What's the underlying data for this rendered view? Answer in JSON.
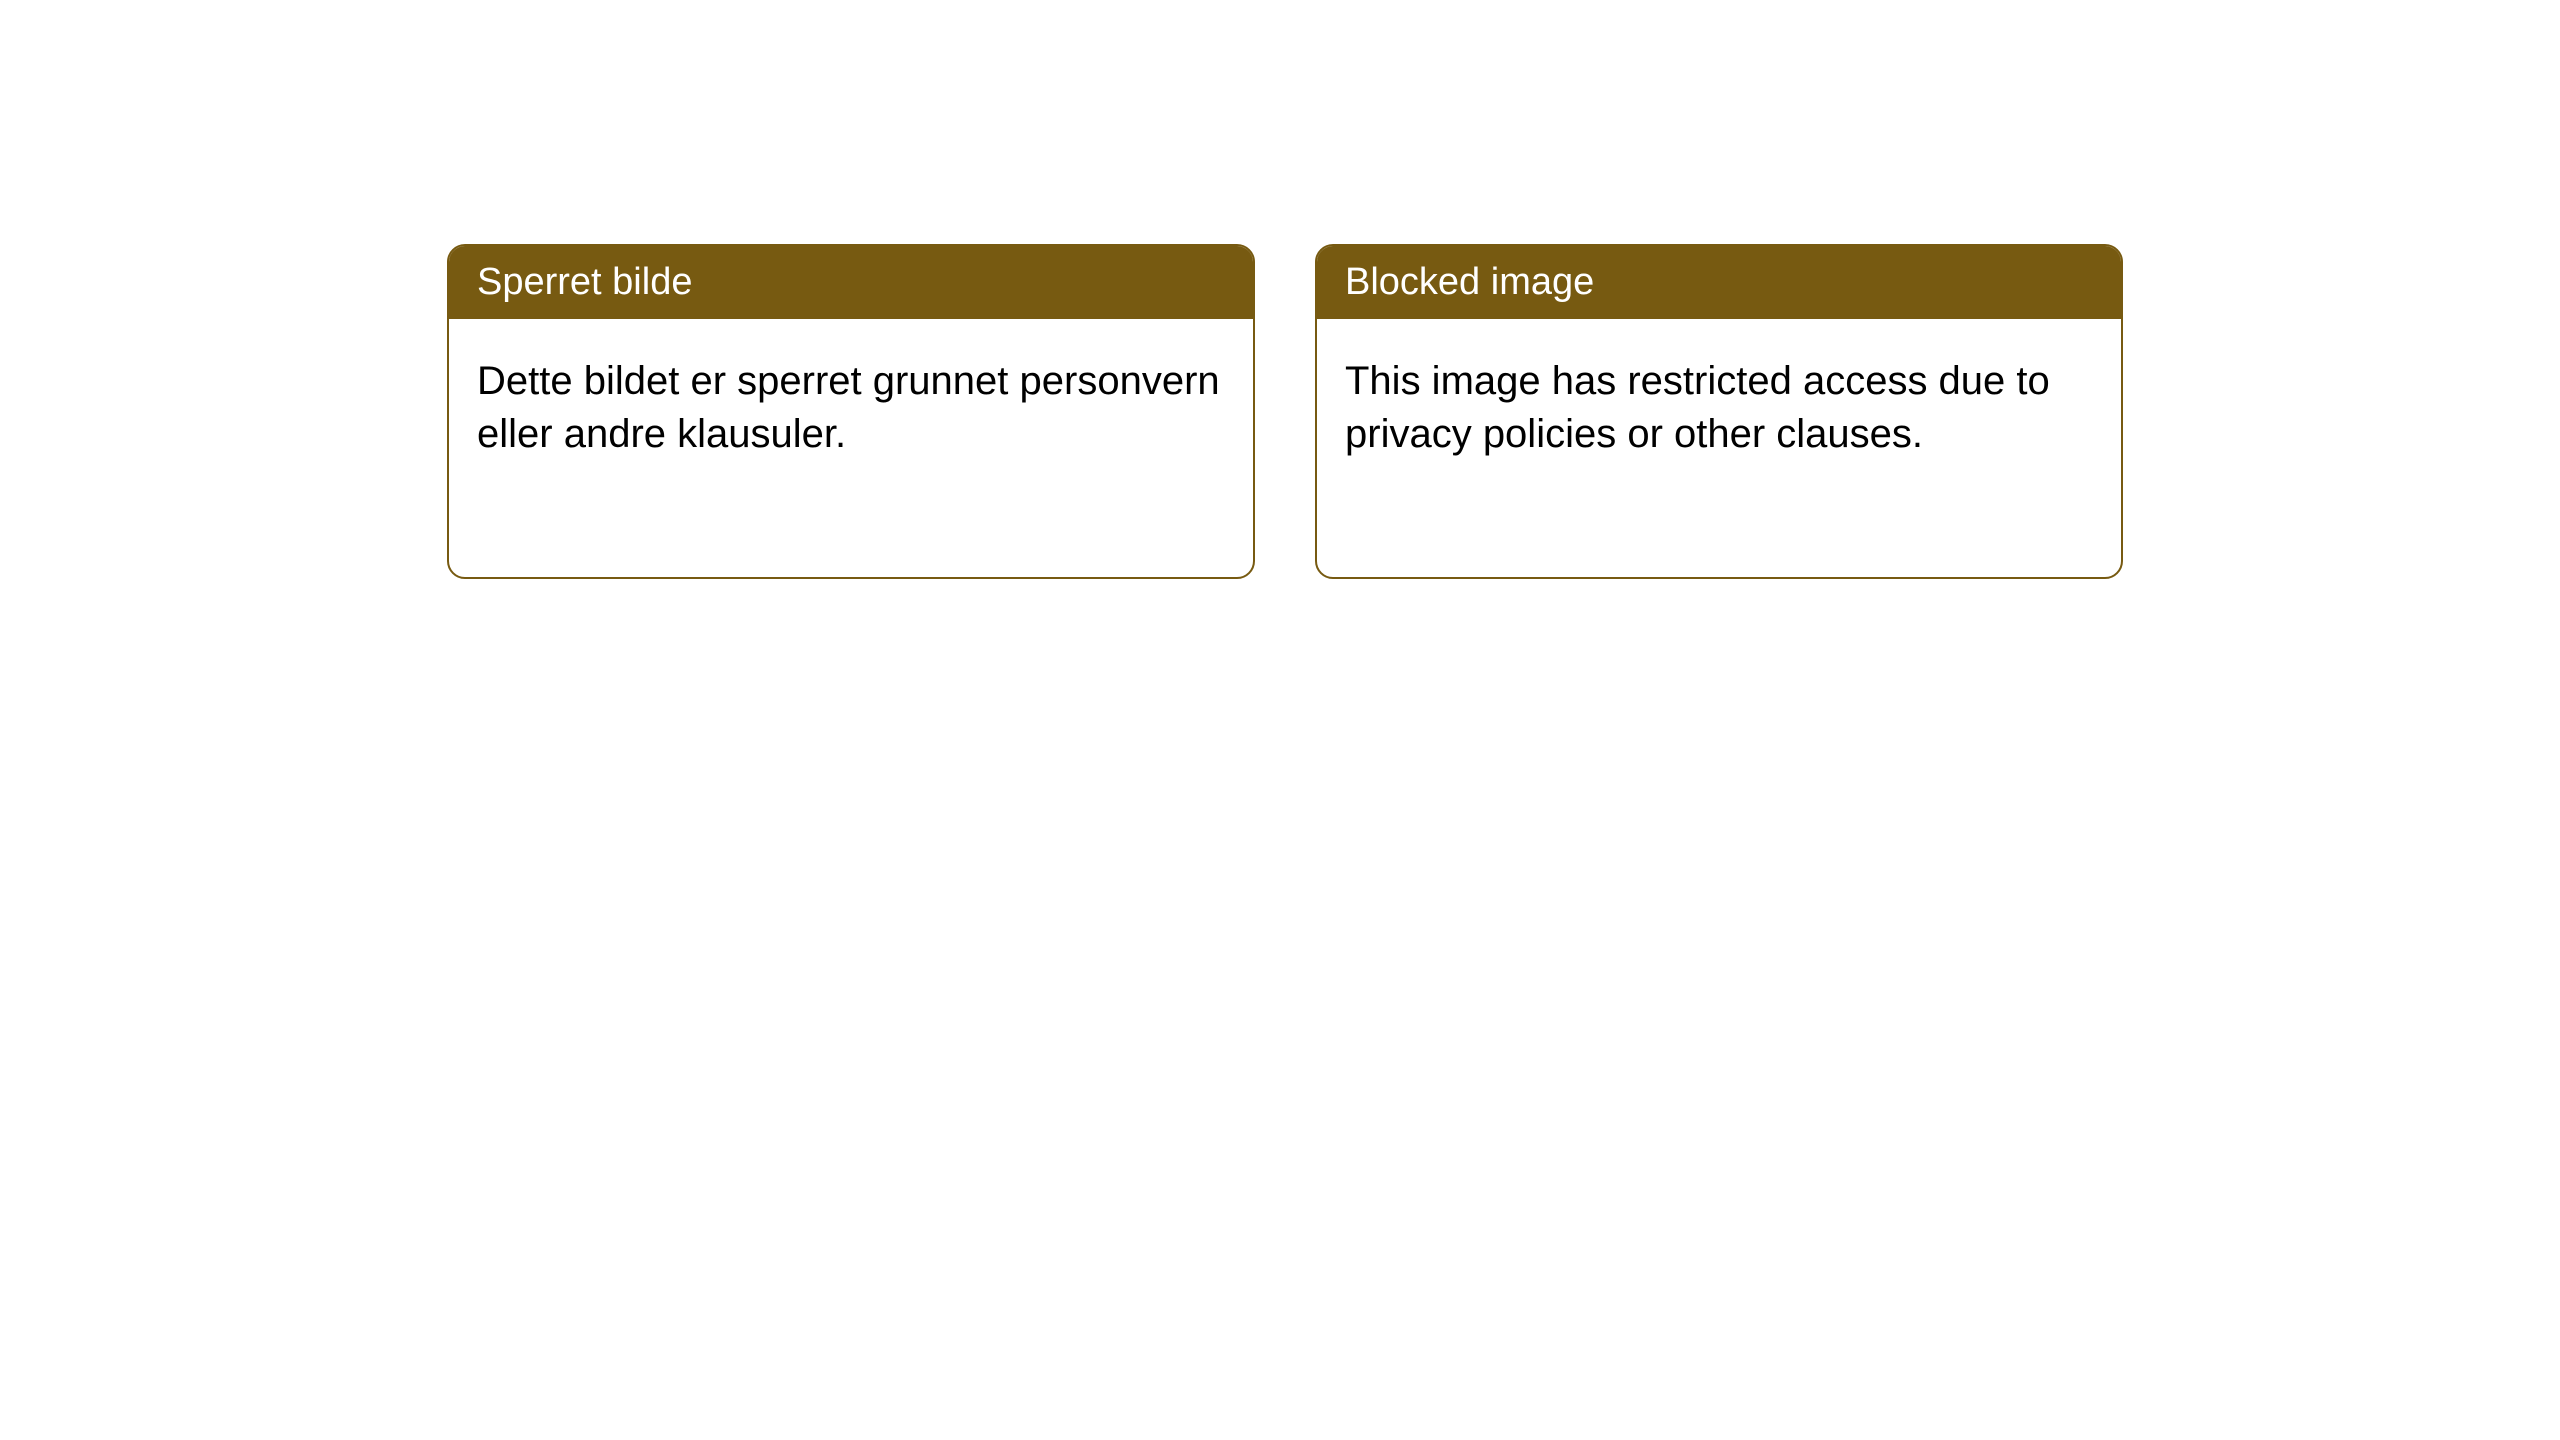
{
  "cards": [
    {
      "title": "Sperret bilde",
      "body": "Dette bildet er sperret grunnet personvern eller andre klausuler."
    },
    {
      "title": "Blocked image",
      "body": "This image has restricted access due to privacy policies or other clauses."
    }
  ],
  "styles": {
    "header_background": "#775a11",
    "header_text_color": "#ffffff",
    "body_text_color": "#000000",
    "card_border_color": "#775a11",
    "card_background": "#ffffff",
    "page_background": "#ffffff",
    "border_radius": 18,
    "title_fontsize": 38,
    "body_fontsize": 40
  }
}
